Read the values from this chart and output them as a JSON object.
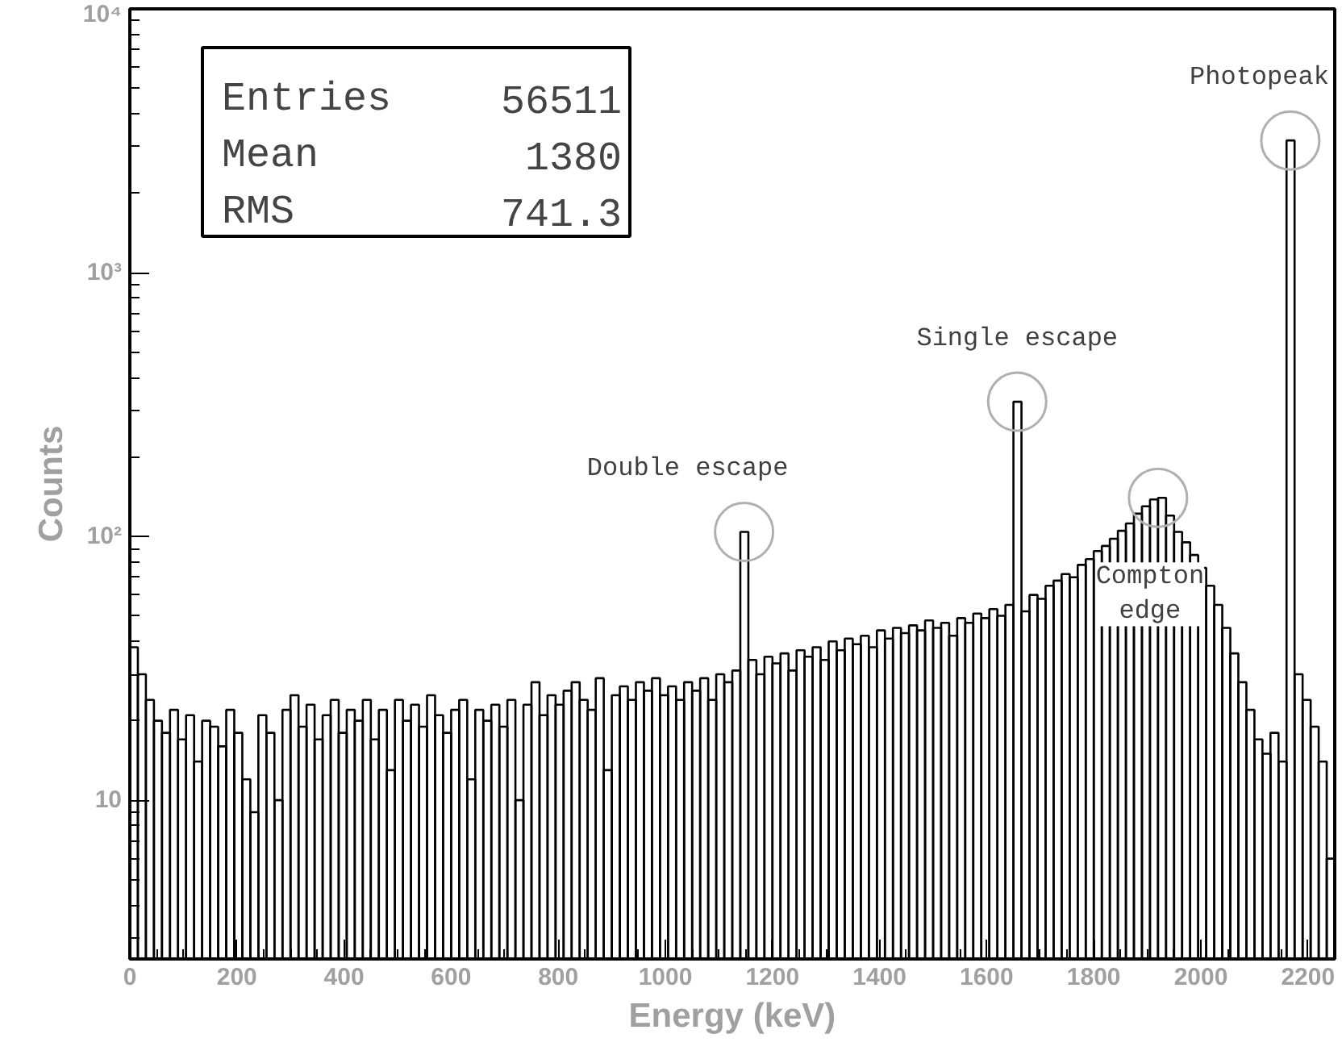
{
  "chart_data": {
    "type": "histogram",
    "xlabel": "Energy (keV)",
    "ylabel": "Counts",
    "bins": [
      0,
      15,
      30,
      45,
      60,
      75,
      90,
      105,
      120,
      135,
      150,
      165,
      180,
      195,
      210,
      225,
      240,
      255,
      270,
      285,
      300,
      315,
      330,
      345,
      360,
      375,
      390,
      405,
      420,
      435,
      450,
      465,
      480,
      495,
      510,
      525,
      540,
      555,
      570,
      585,
      600,
      615,
      630,
      645,
      660,
      675,
      690,
      705,
      720,
      735,
      750,
      765,
      780,
      795,
      810,
      825,
      840,
      855,
      870,
      885,
      900,
      915,
      930,
      945,
      960,
      975,
      990,
      1005,
      1020,
      1035,
      1050,
      1065,
      1080,
      1095,
      1110,
      1125,
      1140,
      1155,
      1170,
      1185,
      1200,
      1215,
      1230,
      1245,
      1260,
      1275,
      1290,
      1305,
      1320,
      1335,
      1350,
      1365,
      1380,
      1395,
      1410,
      1425,
      1440,
      1455,
      1470,
      1485,
      1500,
      1515,
      1530,
      1545,
      1560,
      1575,
      1590,
      1605,
      1620,
      1635,
      1650,
      1665,
      1680,
      1695,
      1710,
      1725,
      1740,
      1755,
      1770,
      1785,
      1800,
      1815,
      1830,
      1845,
      1860,
      1875,
      1890,
      1905,
      1920,
      1935,
      1950,
      1965,
      1980,
      1995,
      2010,
      2025,
      2040,
      2055,
      2070,
      2085,
      2100,
      2115,
      2130,
      2145,
      2160,
      2175,
      2190,
      2205,
      2220,
      2235,
      2250
    ],
    "values": [
      38,
      30,
      24,
      20,
      18,
      22,
      17,
      21,
      14,
      20,
      19,
      16,
      22,
      18,
      12,
      9,
      21,
      18,
      10,
      22,
      25,
      19,
      23,
      17,
      21,
      24,
      18,
      22,
      20,
      24,
      17,
      22,
      13,
      24,
      20,
      23,
      19,
      25,
      21,
      18,
      22,
      24,
      12,
      22,
      20,
      23,
      19,
      24,
      10,
      23,
      28,
      21,
      25,
      23,
      26,
      28,
      24,
      22,
      29,
      13,
      25,
      27,
      24,
      28,
      26,
      29,
      25,
      27,
      24,
      28,
      26,
      29,
      24,
      30,
      28,
      31,
      104,
      34,
      30,
      35,
      33,
      36,
      31,
      37,
      35,
      38,
      34,
      40,
      37,
      41,
      39,
      42,
      38,
      44,
      41,
      45,
      43,
      46,
      44,
      48,
      45,
      47,
      42,
      49,
      47,
      51,
      49,
      53,
      50,
      55,
      324,
      52,
      60,
      58,
      65,
      68,
      72,
      70,
      78,
      82,
      88,
      92,
      98,
      105,
      112,
      122,
      130,
      138,
      140,
      120,
      104,
      95,
      85,
      76,
      65,
      55,
      45,
      36,
      28,
      22,
      17,
      15,
      18,
      14,
      3170,
      30,
      24,
      19,
      14,
      6
    ],
    "color": "#000000",
    "xlim": [
      0,
      2250
    ],
    "xticks": [
      0,
      200,
      400,
      600,
      800,
      1000,
      1200,
      1400,
      1600,
      1800,
      2000,
      2200
    ],
    "ylim": [
      2.5,
      10000
    ],
    "log": true,
    "yticks": [
      {
        "value": 10,
        "label": "10"
      },
      {
        "value": 100,
        "label": "10²"
      },
      {
        "value": 1000,
        "label": "10³"
      },
      {
        "value": 10000,
        "label": "10⁴"
      }
    ],
    "grid": false,
    "annotations": [
      "Entries 56511",
      "Mean 1380",
      "RMS 741.3",
      {
        "text": "Double escape",
        "x": 1147,
        "y": 104
      },
      {
        "text": "Single escape",
        "x": 1657,
        "y": 324
      },
      {
        "text": "Photopeak",
        "x": 2167,
        "y": 3170
      },
      {
        "text": "Compton\nedge",
        "x": 1920,
        "y": 140
      }
    ]
  }
}
